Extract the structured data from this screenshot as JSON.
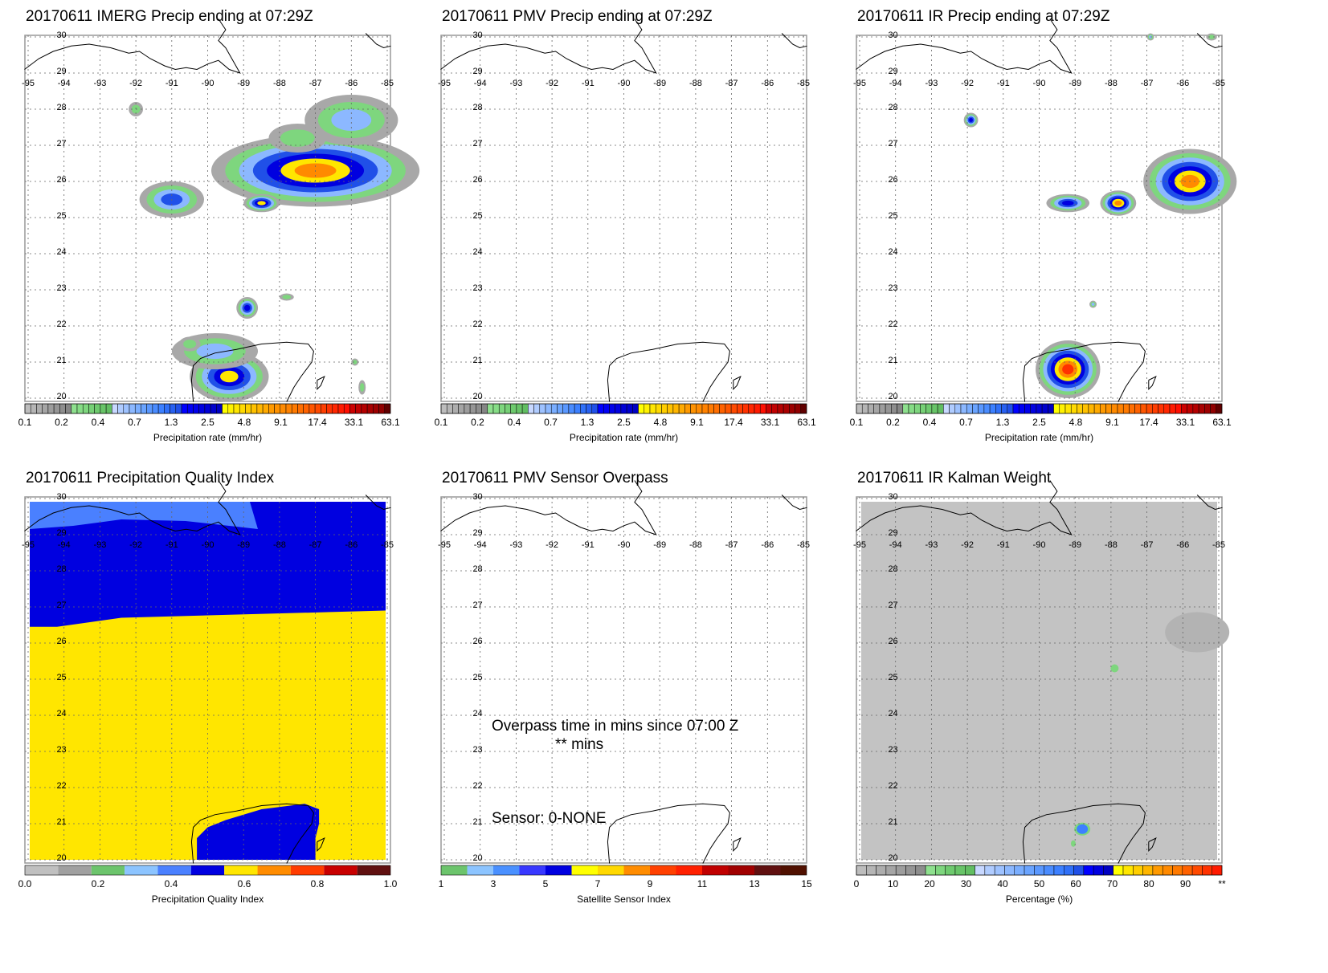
{
  "lon_ticks": [
    "-95",
    "-94",
    "-93",
    "-92",
    "-91",
    "-90",
    "-89",
    "-88",
    "-87",
    "-86",
    "-85"
  ],
  "lat_ticks": [
    "20",
    "21",
    "22",
    "23",
    "24",
    "25",
    "26",
    "27",
    "28",
    "29",
    "30"
  ],
  "panels": [
    {
      "title": "20170611 IMERG Precip ending at 07:29Z",
      "cb_labels": [
        "0.1",
        "0.2",
        "0.4",
        "0.7",
        "1.3",
        "2.5",
        "4.8",
        "9.1",
        "17.4",
        "33.1",
        "63.1"
      ],
      "cb_title": "Precipitation rate (mm/hr)"
    },
    {
      "title": "20170611 PMV Precip ending at 07:29Z",
      "cb_labels": [
        "0.1",
        "0.2",
        "0.4",
        "0.7",
        "1.3",
        "2.5",
        "4.8",
        "9.1",
        "17.4",
        "33.1",
        "63.1"
      ],
      "cb_title": "Precipitation rate (mm/hr)"
    },
    {
      "title": "20170611 IR Precip ending at 07:29Z",
      "cb_labels": [
        "0.1",
        "0.2",
        "0.4",
        "0.7",
        "1.3",
        "2.5",
        "4.8",
        "9.1",
        "17.4",
        "33.1",
        "63.1"
      ],
      "cb_title": "Precipitation rate (mm/hr)"
    },
    {
      "title": "20170611 Precipitation Quality Index",
      "cb_labels": [
        "0.0",
        "0.2",
        "0.4",
        "0.6",
        "0.8",
        "1.0"
      ],
      "cb_title": "Precipitation Quality Index"
    },
    {
      "title": "20170611 PMV Sensor Overpass",
      "cb_labels": [
        "1",
        "3",
        "5",
        "7",
        "9",
        "11",
        "13",
        "15"
      ],
      "cb_title": "Satellite Sensor Index",
      "overpass_line1": "Overpass time in mins since 07:00 Z",
      "overpass_line2": "** mins",
      "sensor_line": "Sensor:   0-NONE"
    },
    {
      "title": "20170611 IR Kalman Weight",
      "cb_labels": [
        "0",
        "10",
        "20",
        "30",
        "40",
        "50",
        "60",
        "70",
        "80",
        "90",
        "**"
      ],
      "cb_title": "Percentage (%)"
    }
  ],
  "palettes": {
    "precip": [
      "#bdbdbd",
      "#b5b5b5",
      "#adadad",
      "#a5a5a5",
      "#9d9d9d",
      "#959595",
      "#8d8d8d",
      "#858585",
      "#8ee08e",
      "#86dc86",
      "#7ed67e",
      "#76d076",
      "#6eca6e",
      "#68c468",
      "#62be62",
      "#c8d8ff",
      "#b0ccff",
      "#9ec2ff",
      "#8cb8ff",
      "#7aaeff",
      "#6aa4ff",
      "#5a98ff",
      "#4a8cff",
      "#3c80ff",
      "#3070f8",
      "#2860f0",
      "#2050e8",
      "#0000ff",
      "#0000f4",
      "#0000ea",
      "#0000e0",
      "#0000d6",
      "#0000cc",
      "#0000c2",
      "#ffff00",
      "#fff200",
      "#ffe600",
      "#ffda00",
      "#ffce00",
      "#ffc200",
      "#ffb600",
      "#ffaa00",
      "#ff9a00",
      "#ff9200",
      "#ff8a00",
      "#ff8200",
      "#ff7a00",
      "#ff6e00",
      "#ff6200",
      "#ff5600",
      "#ff4a00",
      "#ff3e00",
      "#ff3200",
      "#ff2600",
      "#ff1a00",
      "#ff0e00",
      "#cc0000",
      "#c00000",
      "#b40000",
      "#a80000",
      "#9c0000",
      "#900000",
      "#600000"
    ],
    "quality": [
      "#c0c0c0",
      "#a0a0a0",
      "#6cc46c",
      "#8cc4ff",
      "#4a80ff",
      "#0000e0",
      "#ffe600",
      "#ff8c00",
      "#ff3c00",
      "#c80000",
      "#601010"
    ],
    "sensor": [
      "#6cc46c",
      "#8cc4ff",
      "#4a90ff",
      "#3838ff",
      "#0000e0",
      "#ffff00",
      "#ffd800",
      "#ff8c00",
      "#ff4000",
      "#ff2000",
      "#c00000",
      "#a00000",
      "#601010",
      "#501000"
    ],
    "kalman": [
      "#bdbdbd",
      "#b5b5b5",
      "#adadad",
      "#a5a5a5",
      "#9d9d9d",
      "#959595",
      "#8d8d8d",
      "#8ee08e",
      "#7ed67e",
      "#6eca6e",
      "#68c468",
      "#62be62",
      "#c8d8ff",
      "#b0ccff",
      "#9ec2ff",
      "#8cb8ff",
      "#7aaeff",
      "#6aa4ff",
      "#5a98ff",
      "#4a8cff",
      "#3c80ff",
      "#3070f8",
      "#2050e8",
      "#0000ff",
      "#0000e0",
      "#0000c2",
      "#ffff00",
      "#ffe600",
      "#ffce00",
      "#ffb600",
      "#ff9a00",
      "#ff8a00",
      "#ff7a00",
      "#ff6200",
      "#ff4a00",
      "#ff3200",
      "#ff1a00"
    ]
  }
}
